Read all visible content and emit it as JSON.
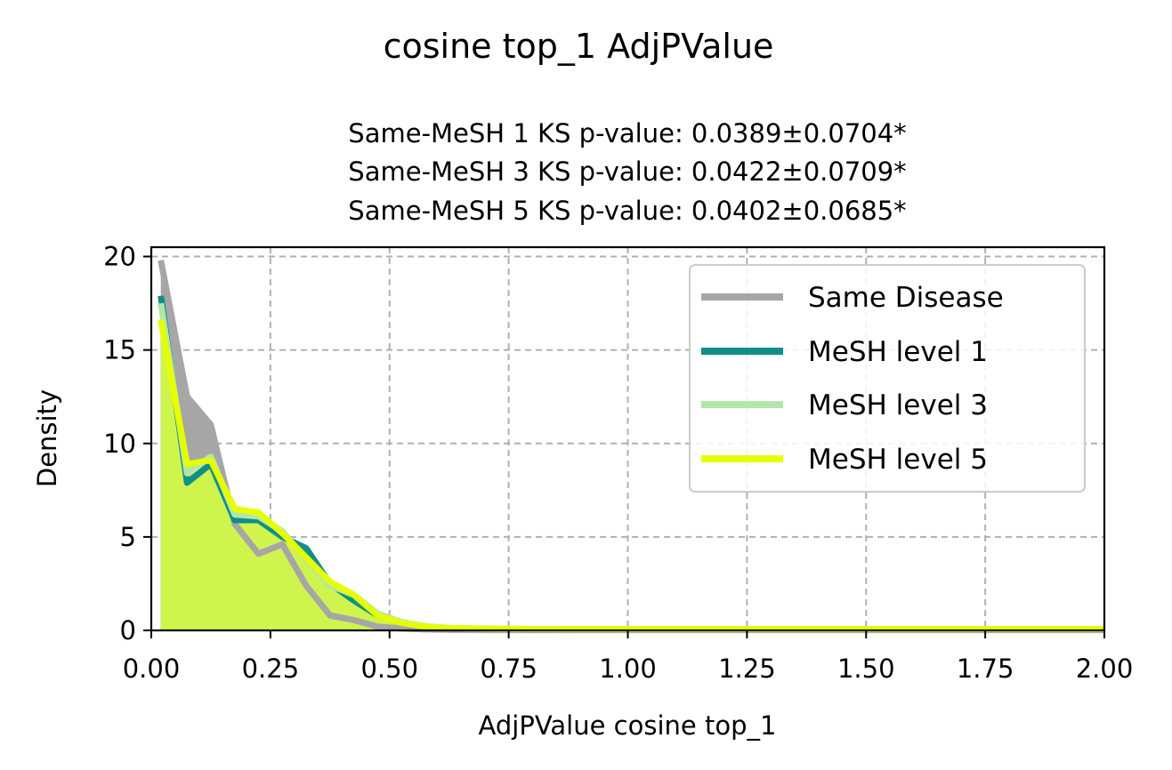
{
  "chart_data": {
    "type": "area",
    "suptitle": "cosine top_1 AdjPValue",
    "title_lines": [
      "Same-MeSH 1 KS p-value: 0.0389±0.0704*",
      "Same-MeSH 3 KS p-value: 0.0422±0.0709*",
      "Same-MeSH 5 KS p-value: 0.0402±0.0685*"
    ],
    "xlabel": "AdjPValue cosine top_1",
    "ylabel": "Density",
    "xlim": [
      0,
      2
    ],
    "ylim": [
      0,
      20.5
    ],
    "xticks": [
      0,
      0.25,
      0.5,
      0.75,
      1.0,
      1.25,
      1.5,
      1.75,
      2.0
    ],
    "xtick_labels": [
      "0.00",
      "0.25",
      "0.50",
      "0.75",
      "1.00",
      "1.25",
      "1.50",
      "1.75",
      "2.00"
    ],
    "yticks": [
      0,
      5,
      10,
      15,
      20
    ],
    "ytick_labels": [
      "0",
      "5",
      "10",
      "15",
      "20"
    ],
    "grid": true,
    "legend_position": "upper-right",
    "series": [
      {
        "name": "Same Disease",
        "color": "#a6a6a6",
        "fill_opacity": 1,
        "x": [
          0.02,
          0.075,
          0.125,
          0.175,
          0.225,
          0.275,
          0.325,
          0.375,
          0.425,
          0.475,
          0.525,
          0.575,
          0.625,
          0.7,
          0.8,
          1.0,
          1.5,
          2.0
        ],
        "y": [
          19.8,
          12.5,
          11.0,
          5.7,
          4.1,
          4.6,
          2.4,
          0.8,
          0.55,
          0.2,
          0.1,
          0.05,
          0.03,
          0.02,
          0.02,
          0.02,
          0.02,
          0.02
        ]
      },
      {
        "name": "MeSH level 1",
        "color": "#0e8f8a",
        "fill_opacity": 1,
        "x": [
          0.02,
          0.075,
          0.125,
          0.175,
          0.225,
          0.275,
          0.325,
          0.375,
          0.425,
          0.475,
          0.525,
          0.575,
          0.625,
          0.7,
          0.8,
          1.0,
          1.5,
          2.0
        ],
        "y": [
          17.9,
          7.9,
          8.9,
          5.9,
          5.9,
          5.0,
          4.4,
          2.5,
          1.6,
          0.8,
          0.4,
          0.2,
          0.12,
          0.08,
          0.06,
          0.05,
          0.05,
          0.05
        ]
      },
      {
        "name": "MeSH level 3",
        "color": "#b3e6aa",
        "fill_opacity": 1,
        "x": [
          0.02,
          0.075,
          0.125,
          0.175,
          0.225,
          0.275,
          0.325,
          0.375,
          0.425,
          0.475,
          0.525,
          0.575,
          0.625,
          0.7,
          0.8,
          1.0,
          1.5,
          2.0
        ],
        "y": [
          17.5,
          8.4,
          9.3,
          6.2,
          6.1,
          5.3,
          3.8,
          2.4,
          1.9,
          0.9,
          0.45,
          0.22,
          0.13,
          0.09,
          0.07,
          0.06,
          0.06,
          0.06
        ]
      },
      {
        "name": "MeSH level 5",
        "color": "#e6ff00",
        "fill_opacity": 0.55,
        "x": [
          0.02,
          0.075,
          0.125,
          0.175,
          0.225,
          0.275,
          0.325,
          0.375,
          0.425,
          0.475,
          0.525,
          0.575,
          0.625,
          0.7,
          0.8,
          1.0,
          1.5,
          2.0
        ],
        "y": [
          16.6,
          8.9,
          9.1,
          6.5,
          6.3,
          5.2,
          3.9,
          2.6,
          1.9,
          0.8,
          0.4,
          0.2,
          0.12,
          0.09,
          0.07,
          0.07,
          0.07,
          0.07
        ]
      }
    ]
  }
}
